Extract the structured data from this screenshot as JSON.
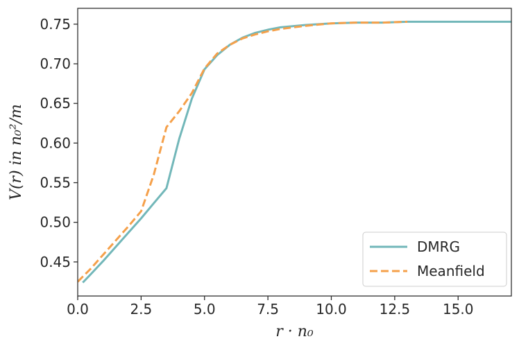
{
  "chart_data": {
    "type": "line",
    "title": "",
    "xlabel": "r · n₀",
    "ylabel": "V(r) in n₀²/m",
    "xlim": [
      0,
      17.1
    ],
    "ylim": [
      0.407,
      0.77
    ],
    "x_ticks": [
      0.0,
      2.5,
      5.0,
      7.5,
      10.0,
      12.5,
      15.0
    ],
    "x_tick_labels": [
      "0.0",
      "2.5",
      "5.0",
      "7.5",
      "10.0",
      "12.5",
      "15.0"
    ],
    "y_ticks": [
      0.45,
      0.5,
      0.55,
      0.6,
      0.65,
      0.7,
      0.75
    ],
    "y_tick_labels": [
      "0.45",
      "0.50",
      "0.55",
      "0.60",
      "0.65",
      "0.70",
      "0.75"
    ],
    "grid": false,
    "legend_position": "bottom-right",
    "series": [
      {
        "name": "DMRG",
        "color": "#72b7b9",
        "style": "solid",
        "points": [
          [
            0.2,
            0.424
          ],
          [
            0.5,
            0.434
          ],
          [
            1.0,
            0.451
          ],
          [
            1.5,
            0.469
          ],
          [
            2.0,
            0.487
          ],
          [
            2.5,
            0.505
          ],
          [
            3.0,
            0.524
          ],
          [
            3.5,
            0.543
          ],
          [
            4.0,
            0.605
          ],
          [
            4.5,
            0.656
          ],
          [
            5.0,
            0.693
          ],
          [
            5.5,
            0.711
          ],
          [
            6.0,
            0.724
          ],
          [
            6.5,
            0.733
          ],
          [
            7.0,
            0.739
          ],
          [
            7.5,
            0.743
          ],
          [
            8.0,
            0.746
          ],
          [
            9.0,
            0.749
          ],
          [
            10.0,
            0.751
          ],
          [
            11.0,
            0.752
          ],
          [
            12.0,
            0.752
          ],
          [
            13.0,
            0.753
          ],
          [
            14.0,
            0.753
          ],
          [
            15.0,
            0.753
          ],
          [
            16.0,
            0.753
          ],
          [
            17.1,
            0.753
          ]
        ]
      },
      {
        "name": "Meanfield",
        "color": "#f5a04a",
        "style": "dashed",
        "points": [
          [
            0.0,
            0.425
          ],
          [
            0.5,
            0.441
          ],
          [
            1.0,
            0.459
          ],
          [
            1.5,
            0.477
          ],
          [
            2.0,
            0.495
          ],
          [
            2.5,
            0.514
          ],
          [
            3.0,
            0.56
          ],
          [
            3.5,
            0.62
          ],
          [
            4.0,
            0.64
          ],
          [
            4.5,
            0.663
          ],
          [
            5.0,
            0.694
          ],
          [
            5.5,
            0.713
          ],
          [
            6.0,
            0.724
          ],
          [
            6.5,
            0.732
          ],
          [
            7.0,
            0.737
          ],
          [
            7.5,
            0.741
          ],
          [
            8.0,
            0.744
          ],
          [
            9.0,
            0.748
          ],
          [
            10.0,
            0.751
          ],
          [
            11.0,
            0.752
          ],
          [
            12.0,
            0.752
          ],
          [
            13.0,
            0.753
          ]
        ]
      }
    ]
  }
}
